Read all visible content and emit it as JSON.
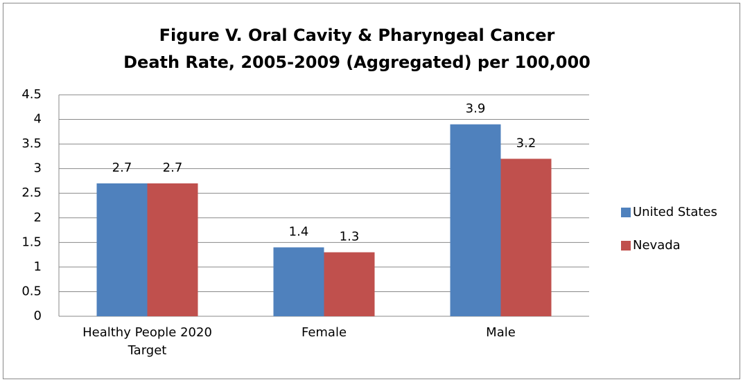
{
  "chart_data": {
    "type": "bar",
    "title": [
      "Figure V. Oral Cavity & Pharyngeal Cancer",
      "Death Rate, 2005-2009 (Aggregated) per 100,000"
    ],
    "categories": [
      "Healthy People 2020 Target",
      "Female",
      "Male"
    ],
    "series": [
      {
        "name": "United States",
        "color": "#4f81bd",
        "values": [
          2.7,
          1.4,
          3.9
        ]
      },
      {
        "name": "Nevada",
        "color": "#c0504d",
        "values": [
          2.7,
          1.3,
          3.2
        ]
      }
    ],
    "ylim": [
      0,
      4.5
    ],
    "yticks": [
      0,
      0.5,
      1,
      1.5,
      2,
      2.5,
      3,
      3.5,
      4,
      4.5
    ],
    "grid": true,
    "legend": "right"
  }
}
